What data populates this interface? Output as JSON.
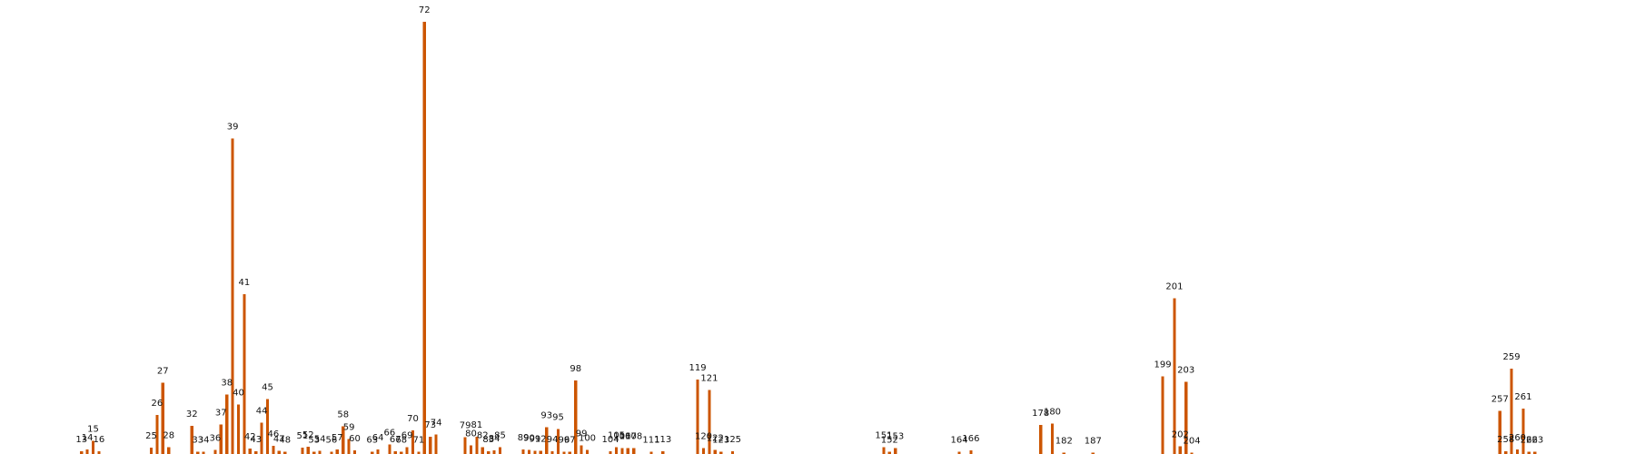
{
  "chart_data": {
    "type": "bar",
    "title": "",
    "xlabel": "",
    "ylabel": "",
    "bar_color": "#cc5500",
    "grid": false,
    "legend": "none",
    "x_range": [
      1,
      280
    ],
    "y_range": [
      0,
      1
    ],
    "points": [
      {
        "x": 13,
        "y": 0.006,
        "label": "13"
      },
      {
        "x": 14,
        "y": 0.01,
        "label": "14"
      },
      {
        "x": 15,
        "y": 0.03,
        "label": "15"
      },
      {
        "x": 16,
        "y": 0.006,
        "label": "16"
      },
      {
        "x": 25,
        "y": 0.015,
        "label": "25"
      },
      {
        "x": 26,
        "y": 0.09,
        "label": "26"
      },
      {
        "x": 27,
        "y": 0.165,
        "label": "27"
      },
      {
        "x": 28,
        "y": 0.016,
        "label": "28"
      },
      {
        "x": 32,
        "y": 0.065,
        "label": "32"
      },
      {
        "x": 33,
        "y": 0.005,
        "label": "33"
      },
      {
        "x": 34,
        "y": 0.005,
        "label": "34"
      },
      {
        "x": 36,
        "y": 0.009,
        "label": "36"
      },
      {
        "x": 37,
        "y": 0.068,
        "label": "37"
      },
      {
        "x": 38,
        "y": 0.138,
        "label": "38"
      },
      {
        "x": 39,
        "y": 0.73,
        "label": "39"
      },
      {
        "x": 40,
        "y": 0.115,
        "label": "40"
      },
      {
        "x": 41,
        "y": 0.37,
        "label": "41"
      },
      {
        "x": 42,
        "y": 0.013,
        "label": "42"
      },
      {
        "x": 43,
        "y": 0.006,
        "label": "43"
      },
      {
        "x": 44,
        "y": 0.073,
        "label": "44"
      },
      {
        "x": 45,
        "y": 0.127,
        "label": "45"
      },
      {
        "x": 46,
        "y": 0.019,
        "label": "46"
      },
      {
        "x": 47,
        "y": 0.007,
        "label": "47"
      },
      {
        "x": 48,
        "y": 0.005,
        "label": "48"
      },
      {
        "x": 51,
        "y": 0.015,
        "label": "51"
      },
      {
        "x": 52,
        "y": 0.017,
        "label": "52"
      },
      {
        "x": 53,
        "y": 0.005,
        "label": "53"
      },
      {
        "x": 54,
        "y": 0.007,
        "label": "54"
      },
      {
        "x": 56,
        "y": 0.005,
        "label": "56"
      },
      {
        "x": 57,
        "y": 0.011,
        "label": "57"
      },
      {
        "x": 58,
        "y": 0.064,
        "label": "58"
      },
      {
        "x": 59,
        "y": 0.035,
        "label": "59"
      },
      {
        "x": 60,
        "y": 0.008,
        "label": "60"
      },
      {
        "x": 63,
        "y": 0.005,
        "label": "63"
      },
      {
        "x": 64,
        "y": 0.01,
        "label": "64"
      },
      {
        "x": 66,
        "y": 0.022,
        "label": "66"
      },
      {
        "x": 67,
        "y": 0.006,
        "label": "67"
      },
      {
        "x": 68,
        "y": 0.005,
        "label": "68"
      },
      {
        "x": 69,
        "y": 0.016,
        "label": "69"
      },
      {
        "x": 70,
        "y": 0.055,
        "label": "70"
      },
      {
        "x": 71,
        "y": 0.005,
        "label": "71"
      },
      {
        "x": 72,
        "y": 1.0,
        "label": "72"
      },
      {
        "x": 73,
        "y": 0.04,
        "label": "73"
      },
      {
        "x": 74,
        "y": 0.045,
        "label": "74"
      },
      {
        "x": 79,
        "y": 0.039,
        "label": "79"
      },
      {
        "x": 80,
        "y": 0.02,
        "label": "80"
      },
      {
        "x": 81,
        "y": 0.04,
        "label": "81"
      },
      {
        "x": 82,
        "y": 0.016,
        "label": "82"
      },
      {
        "x": 83,
        "y": 0.006,
        "label": "83"
      },
      {
        "x": 84,
        "y": 0.008,
        "label": "84"
      },
      {
        "x": 85,
        "y": 0.016,
        "label": "85"
      },
      {
        "x": 89,
        "y": 0.01,
        "label": "89"
      },
      {
        "x": 90,
        "y": 0.009,
        "label": "90"
      },
      {
        "x": 91,
        "y": 0.007,
        "label": "91"
      },
      {
        "x": 92,
        "y": 0.007,
        "label": "92"
      },
      {
        "x": 93,
        "y": 0.062,
        "label": "93"
      },
      {
        "x": 94,
        "y": 0.006,
        "label": "94"
      },
      {
        "x": 95,
        "y": 0.058,
        "label": "95"
      },
      {
        "x": 96,
        "y": 0.005,
        "label": "96"
      },
      {
        "x": 97,
        "y": 0.005,
        "label": "97"
      },
      {
        "x": 98,
        "y": 0.17,
        "label": "98"
      },
      {
        "x": 99,
        "y": 0.02,
        "label": "99"
      },
      {
        "x": 100,
        "y": 0.009,
        "label": "100"
      },
      {
        "x": 104,
        "y": 0.006,
        "label": "104"
      },
      {
        "x": 105,
        "y": 0.016,
        "label": "105"
      },
      {
        "x": 106,
        "y": 0.014,
        "label": "106"
      },
      {
        "x": 107,
        "y": 0.014,
        "label": "107"
      },
      {
        "x": 108,
        "y": 0.014,
        "label": "108"
      },
      {
        "x": 111,
        "y": 0.005,
        "label": "111"
      },
      {
        "x": 113,
        "y": 0.006,
        "label": "113"
      },
      {
        "x": 119,
        "y": 0.172,
        "label": "119"
      },
      {
        "x": 120,
        "y": 0.014,
        "label": "120"
      },
      {
        "x": 121,
        "y": 0.148,
        "label": "121"
      },
      {
        "x": 122,
        "y": 0.009,
        "label": "122"
      },
      {
        "x": 123,
        "y": 0.005,
        "label": "123"
      },
      {
        "x": 125,
        "y": 0.006,
        "label": "125"
      },
      {
        "x": 151,
        "y": 0.016,
        "label": "151"
      },
      {
        "x": 152,
        "y": 0.005,
        "label": "152"
      },
      {
        "x": 153,
        "y": 0.014,
        "label": "153"
      },
      {
        "x": 164,
        "y": 0.005,
        "label": "164"
      },
      {
        "x": 166,
        "y": 0.008,
        "label": "166"
      },
      {
        "x": 178,
        "y": 0.067,
        "label": "178"
      },
      {
        "x": 180,
        "y": 0.07,
        "label": "180"
      },
      {
        "x": 182,
        "y": 0.003,
        "label": "182"
      },
      {
        "x": 187,
        "y": 0.003,
        "label": "187"
      },
      {
        "x": 199,
        "y": 0.18,
        "label": "199"
      },
      {
        "x": 201,
        "y": 0.36,
        "label": "201"
      },
      {
        "x": 202,
        "y": 0.018,
        "label": "202"
      },
      {
        "x": 203,
        "y": 0.167,
        "label": "203"
      },
      {
        "x": 204,
        "y": 0.003,
        "label": "204"
      },
      {
        "x": 257,
        "y": 0.1,
        "label": "257"
      },
      {
        "x": 258,
        "y": 0.006,
        "label": "258"
      },
      {
        "x": 259,
        "y": 0.197,
        "label": "259"
      },
      {
        "x": 260,
        "y": 0.01,
        "label": "260"
      },
      {
        "x": 261,
        "y": 0.105,
        "label": "261"
      },
      {
        "x": 262,
        "y": 0.005,
        "label": "262"
      },
      {
        "x": 263,
        "y": 0.005,
        "label": "263"
      }
    ]
  }
}
